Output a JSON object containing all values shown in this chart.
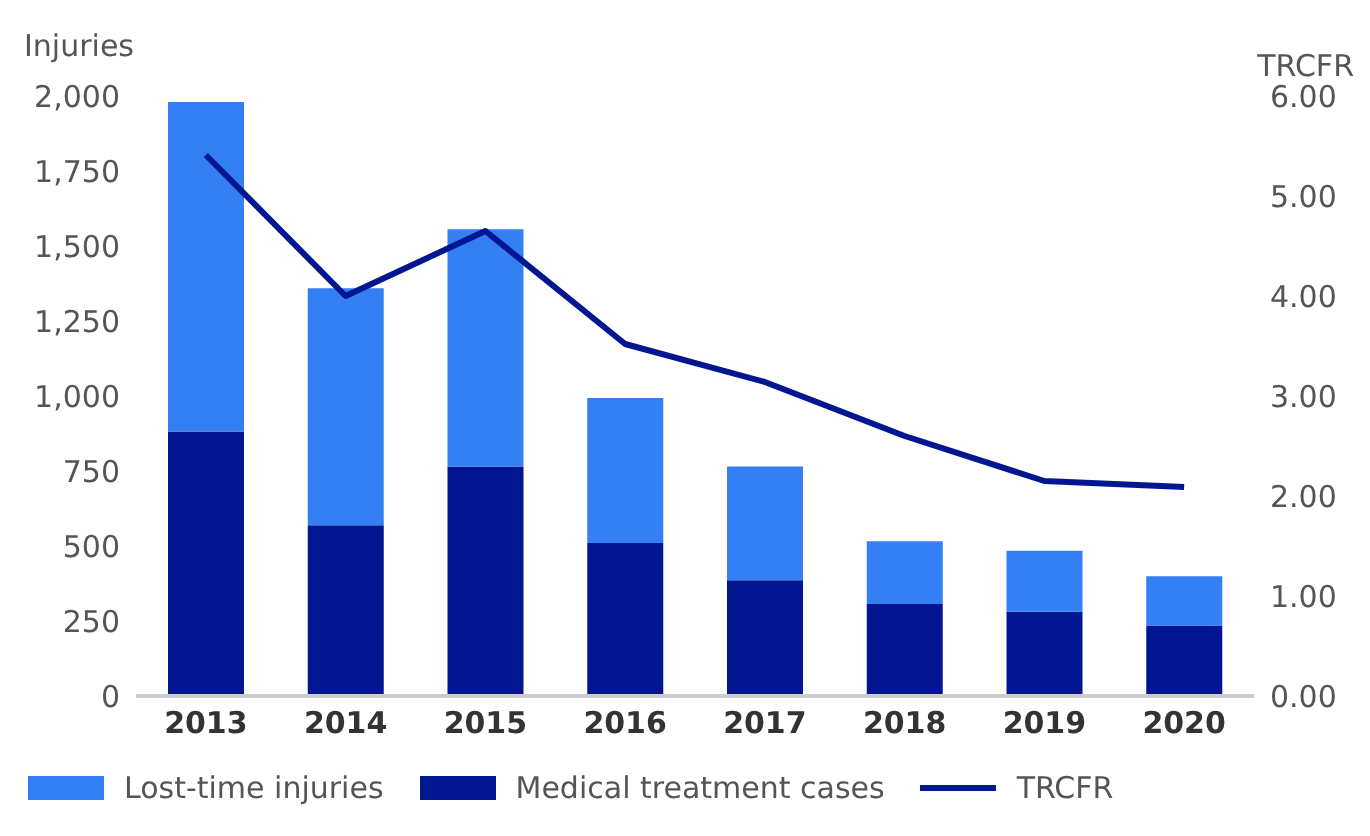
{
  "chart_data": {
    "type": "bar",
    "stacked": true,
    "categories": [
      "2013",
      "2014",
      "2015",
      "2016",
      "2017",
      "2018",
      "2019",
      "2020"
    ],
    "ylabel": "Injuries",
    "y2label": "TRCFR",
    "series": [
      {
        "name": "Medical treatment cases",
        "color": "#021691",
        "values": [
          882,
          569,
          765,
          510,
          386,
          307,
          281,
          235
        ]
      },
      {
        "name": "Lost-time injuries",
        "color": "#347ff3",
        "values": [
          1098,
          790,
          791,
          483,
          379,
          209,
          203,
          164
        ]
      },
      {
        "name": "TRCFR",
        "type": "line",
        "axis": "y2",
        "color": "#021691",
        "values": [
          5.41,
          4.0,
          4.65,
          3.52,
          3.14,
          2.6,
          2.15,
          2.09
        ]
      }
    ],
    "ylim": [
      0,
      2000
    ],
    "yticks": [
      0,
      {
        "value": 250,
        "label": "250"
      },
      {
        "value": 500,
        "label": "500"
      },
      {
        "value": 750,
        "label": "750"
      },
      {
        "value": 1000,
        "label": "1,000"
      },
      {
        "value": 1250,
        "label": "1,250"
      },
      {
        "value": 1500,
        "label": "1,500"
      },
      {
        "value": 1750,
        "label": "1,750"
      },
      {
        "value": 2000,
        "label": "2,000"
      }
    ],
    "y2lim": [
      0,
      6
    ],
    "y2ticks": [
      {
        "value": 0,
        "label": "0.00"
      },
      {
        "value": 1,
        "label": "1.00"
      },
      {
        "value": 2,
        "label": "2.00"
      },
      {
        "value": 3,
        "label": "3.00"
      },
      {
        "value": 4,
        "label": "4.00"
      },
      {
        "value": 5,
        "label": "5.00"
      },
      {
        "value": 6,
        "label": "6.00"
      }
    ],
    "grid": false,
    "legend": "bottom left",
    "marker": "none",
    "line_style": "solid"
  }
}
